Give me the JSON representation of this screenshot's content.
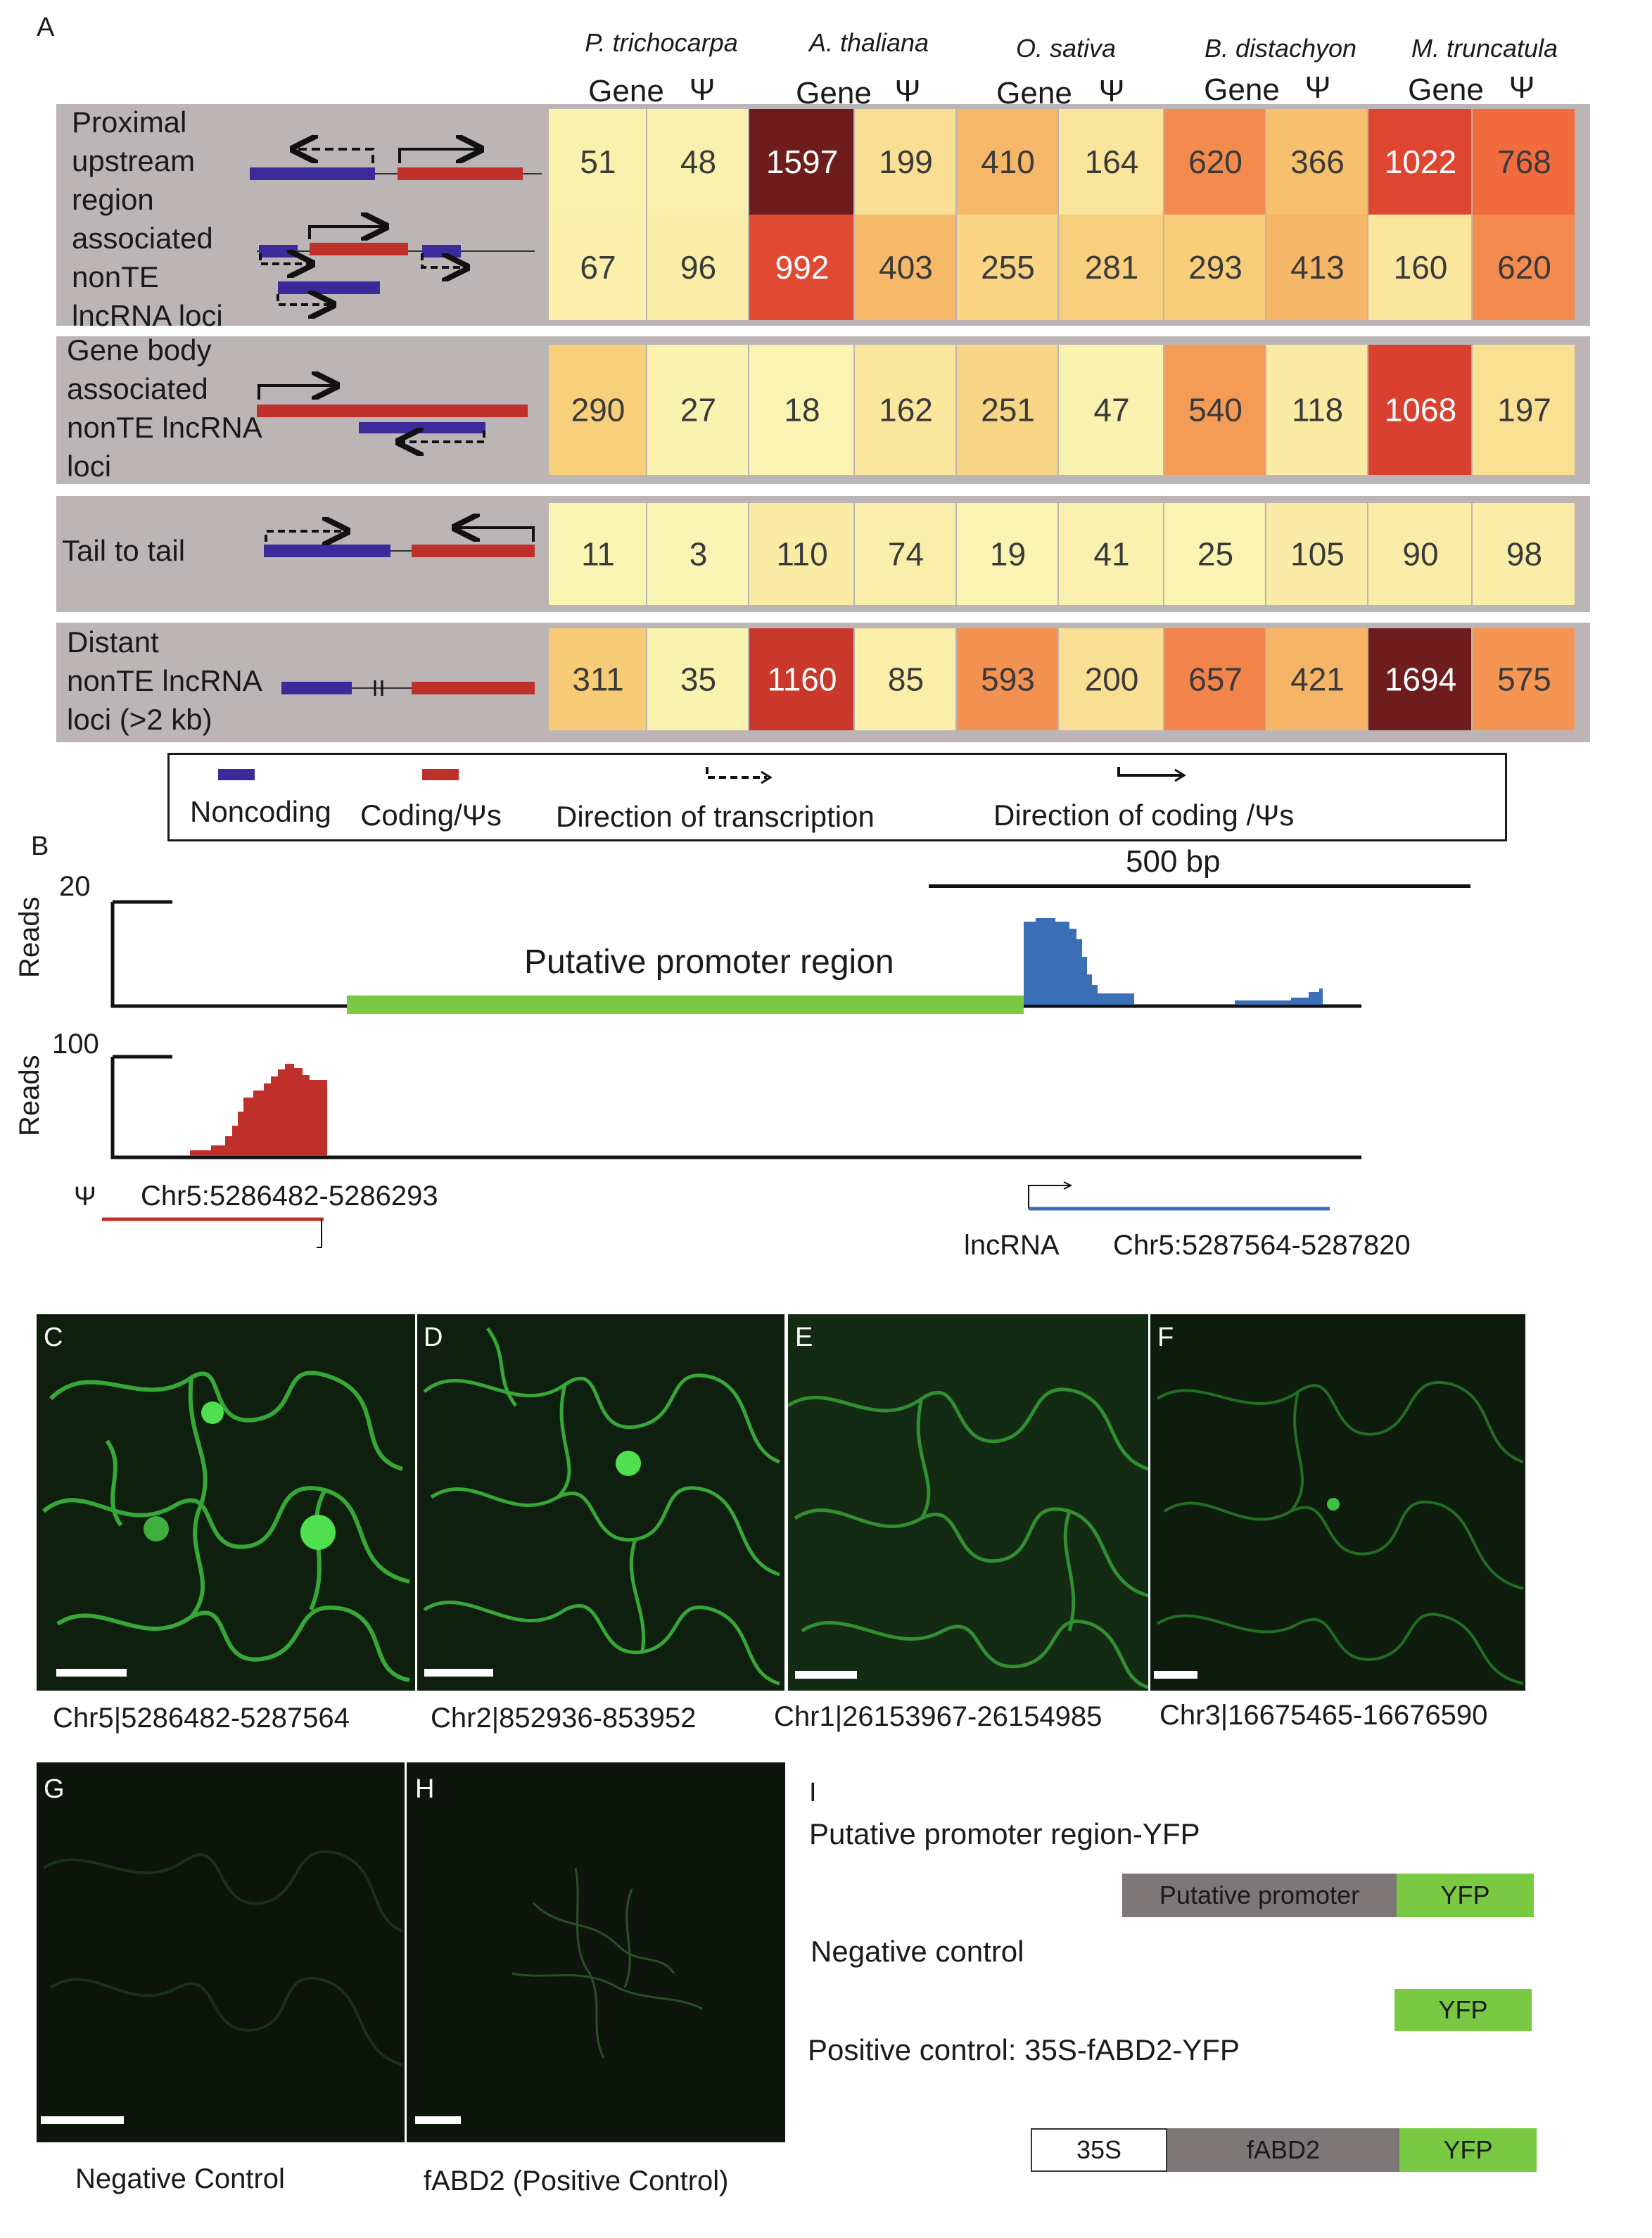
{
  "panel_a": {
    "label": "A",
    "species": [
      "P. trichocarpa",
      "A. thaliana",
      "O. sativa",
      "B. distachyon",
      "M. truncatula"
    ],
    "col_gene": "Gene",
    "col_psi": "Ψ",
    "row_labels": {
      "group1": [
        "Proximal",
        "upstream",
        "region",
        "associated",
        "nonTE",
        "lncRNA loci"
      ],
      "group2": [
        "Gene body",
        "associated",
        "nonTE lncRNA",
        "loci"
      ],
      "group3": [
        "Tail to tail"
      ],
      "group4": [
        "Distant",
        "nonTE lncRNA",
        "loci (>2 kb)"
      ]
    },
    "heatmap_rows": [
      [
        51,
        48,
        1597,
        199,
        410,
        164,
        620,
        366,
        1022,
        768
      ],
      [
        67,
        96,
        992,
        403,
        255,
        281,
        293,
        413,
        160,
        620
      ],
      [
        290,
        27,
        18,
        162,
        251,
        47,
        540,
        118,
        1068,
        197
      ],
      [
        11,
        3,
        110,
        74,
        19,
        41,
        25,
        105,
        90,
        98
      ],
      [
        311,
        35,
        1160,
        85,
        593,
        200,
        657,
        421,
        1694,
        575
      ]
    ],
    "legend": {
      "noncoding": "Noncoding",
      "coding": "Coding/Ψs",
      "transcription": "Direction of transcription",
      "coding_dir": "Direction of coding /Ψs"
    },
    "colors": {
      "noncoding": "#3a2a9a",
      "coding": "#c0302a",
      "group_bg": "#bcb5b5"
    }
  },
  "panel_b": {
    "label": "B",
    "scale": "500 bp",
    "track1_max": "20",
    "track2_max": "100",
    "ylabel": "Reads",
    "promoter_label": "Putative promoter region",
    "psi_symbol": "Ψ",
    "psi_coord": "Chr5:5286482-5286293",
    "lnc_label": "lncRNA",
    "lnc_coord": "Chr5:5287564-5287820",
    "colors": {
      "promoter": "#7ac943",
      "lnc": "#3a6fb5",
      "psi": "#c0302a"
    }
  },
  "micrographs": [
    {
      "label": "C",
      "caption": "Chr5|5286482-5287564"
    },
    {
      "label": "D",
      "caption": "Chr2|852936-853952"
    },
    {
      "label": "E",
      "caption": "Chr1|26153967-26154985"
    },
    {
      "label": "F",
      "caption": "Chr3|16675465-16676590"
    },
    {
      "label": "G",
      "caption": "Negative Control"
    },
    {
      "label": "H",
      "caption": "fABD2 (Positive Control)"
    }
  ],
  "panel_i": {
    "label": "I",
    "c1_title": "Putative promoter region-YFP",
    "c1_promoter": "Putative promoter",
    "yfp": "YFP",
    "c2_title": "Negative control",
    "c3_title": "Positive control: 35S-fABD2-YFP",
    "c3_35s": "35S",
    "c3_fabd2": "fABD2",
    "colors": {
      "yfp": "#7ac943",
      "promoter": "#7d7777"
    }
  }
}
